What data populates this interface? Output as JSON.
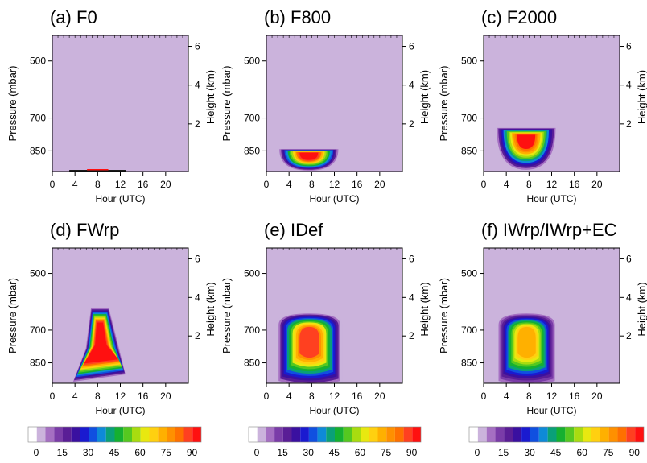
{
  "figure": {
    "xlabel": "Hour (UTC)",
    "ylabel": "Pressure (mbar)",
    "y2label": "Height (km)"
  },
  "chart_data": [
    {
      "type": "heatmap",
      "title": "(a) F0",
      "x_ticks": [
        "0",
        "4",
        "8",
        "12",
        "16",
        "20"
      ],
      "y_ticks": [
        "500",
        "700",
        "850"
      ],
      "y2_ticks": [
        "2",
        "4",
        "6"
      ],
      "xlim": [
        0,
        24
      ],
      "background": "#cbb3dc",
      "features": [
        {
          "kind": "surface",
          "x": [
            3,
            13
          ],
          "peak": 95
        }
      ]
    },
    {
      "type": "heatmap",
      "title": "(b) F800",
      "x_ticks": [
        "0",
        "4",
        "8",
        "12",
        "16",
        "20"
      ],
      "y_ticks": [
        "500",
        "700",
        "850"
      ],
      "y2_ticks": [
        "2",
        "4",
        "6"
      ],
      "xlim": [
        0,
        24
      ],
      "background": "#cbb3dc",
      "features": [
        {
          "kind": "bowl",
          "x": [
            2,
            13
          ],
          "p_top": 840,
          "p_bottom": 960,
          "peak": 100
        }
      ]
    },
    {
      "type": "heatmap",
      "title": "(c) F2000",
      "x_ticks": [
        "0",
        "4",
        "8",
        "12",
        "16",
        "20"
      ],
      "y_ticks": [
        "500",
        "700",
        "850"
      ],
      "y2_ticks": [
        "2",
        "4",
        "6"
      ],
      "xlim": [
        0,
        24
      ],
      "background": "#cbb3dc",
      "features": [
        {
          "kind": "bowl",
          "x": [
            2,
            13
          ],
          "p_top": 740,
          "p_bottom": 960,
          "peak": 95
        }
      ]
    },
    {
      "type": "heatmap",
      "title": "(d) FWrp",
      "x_ticks": [
        "0",
        "4",
        "8",
        "12",
        "16",
        "20"
      ],
      "y_ticks": [
        "500",
        "700",
        "850"
      ],
      "y2_ticks": [
        "2",
        "4",
        "6"
      ],
      "xlim": [
        0,
        24
      ],
      "background": "#cbb3dc",
      "features": [
        {
          "kind": "plume",
          "x": [
            3.5,
            13
          ],
          "p_top": 610,
          "p_bottom": 960,
          "peak": 100
        }
      ]
    },
    {
      "type": "heatmap",
      "title": "(e) IDef",
      "x_ticks": [
        "0",
        "4",
        "8",
        "12",
        "16",
        "20"
      ],
      "y_ticks": [
        "500",
        "700",
        "850"
      ],
      "y2_ticks": [
        "2",
        "4",
        "6"
      ],
      "xlim": [
        0,
        24
      ],
      "background": "#cbb3dc",
      "features": [
        {
          "kind": "column",
          "x": [
            1.5,
            13
          ],
          "p_top": 630,
          "p_bottom": 960,
          "peak": 90
        }
      ]
    },
    {
      "type": "heatmap",
      "title": "(f) IWrp/IWrp+EC",
      "x_ticks": [
        "0",
        "4",
        "8",
        "12",
        "16",
        "20"
      ],
      "y_ticks": [
        "500",
        "700",
        "850"
      ],
      "y2_ticks": [
        "2",
        "4",
        "6"
      ],
      "xlim": [
        0,
        24
      ],
      "background": "#cbb3dc",
      "features": [
        {
          "kind": "column",
          "x": [
            2.5,
            13
          ],
          "p_top": 630,
          "p_bottom": 960,
          "peak": 75
        }
      ]
    }
  ],
  "colorbar": {
    "labels": [
      "0",
      "15",
      "30",
      "45",
      "60",
      "75",
      "90"
    ],
    "colors": [
      "#ffffff",
      "#cbb3dc",
      "#a56fc2",
      "#7a3ca8",
      "#5a1e96",
      "#3a10a0",
      "#1a1ad0",
      "#1050e0",
      "#0e8ad8",
      "#0aa078",
      "#15b030",
      "#55c820",
      "#a8dc10",
      "#e8e810",
      "#ffd010",
      "#ffb000",
      "#ff9000",
      "#ff7000",
      "#ff4020",
      "#ff1010"
    ]
  }
}
